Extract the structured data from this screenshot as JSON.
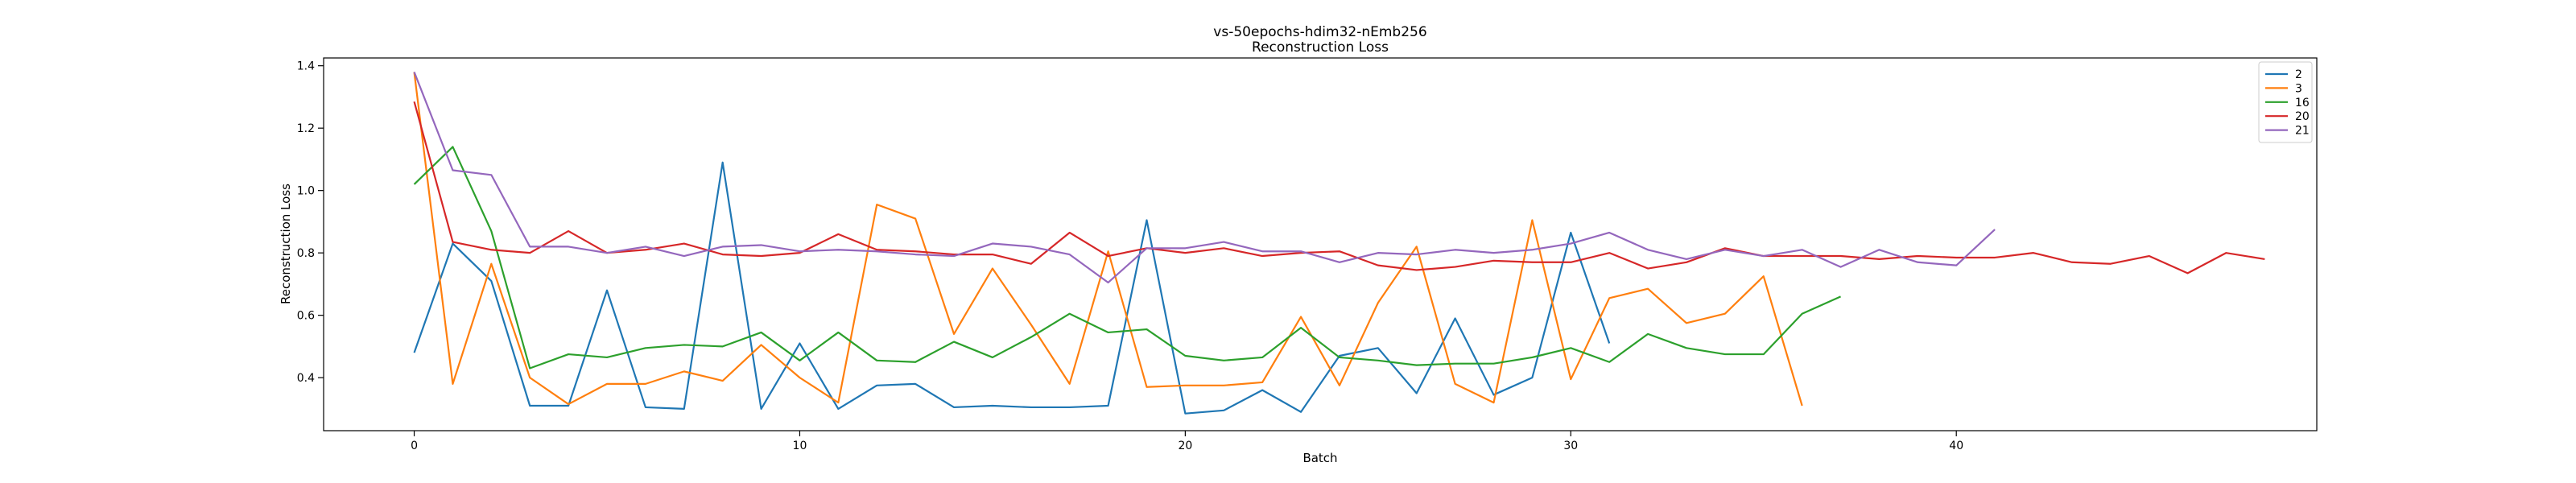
{
  "chart_data": {
    "type": "line",
    "title": "vs-50epochs-hdim32-nEmb256",
    "subtitle": "Reconstruction Loss",
    "xlabel": "Batch",
    "ylabel": "Reconstruction Loss",
    "xlim": [
      -2.35,
      49.35
    ],
    "ylim": [
      0.23,
      1.425
    ],
    "xticks": [
      0,
      10,
      20,
      30,
      40
    ],
    "yticks": [
      0.4,
      0.6,
      0.8,
      1.0,
      1.2,
      1.4
    ],
    "xtick_labels": [
      "0",
      "10",
      "20",
      "30",
      "40"
    ],
    "ytick_labels": [
      "0.4",
      "0.6",
      "0.8",
      "1.0",
      "1.2",
      "1.4"
    ],
    "grid": false,
    "legend_position": "top-right",
    "series": [
      {
        "name": "2",
        "color": "#1f77b4",
        "values": [
          0.48,
          0.83,
          0.71,
          0.31,
          0.31,
          0.68,
          0.305,
          0.3,
          1.09,
          0.3,
          0.51,
          0.3,
          0.375,
          0.38,
          0.305,
          0.31,
          0.305,
          0.305,
          0.31,
          0.905,
          0.285,
          0.295,
          0.36,
          0.29,
          0.47,
          0.495,
          0.35,
          0.59,
          0.345,
          0.4,
          0.865,
          0.51
        ]
      },
      {
        "name": "3",
        "color": "#ff7f0e",
        "values": [
          1.38,
          0.38,
          0.765,
          0.4,
          0.315,
          0.38,
          0.38,
          0.42,
          0.39,
          0.505,
          0.4,
          0.32,
          0.955,
          0.91,
          0.54,
          0.75,
          0.57,
          0.38,
          0.805,
          0.37,
          0.375,
          0.375,
          0.385,
          0.595,
          0.375,
          0.64,
          0.82,
          0.38,
          0.32,
          0.905,
          0.395,
          0.655,
          0.685,
          0.575,
          0.605,
          0.725,
          0.31
        ]
      },
      {
        "name": "16",
        "color": "#2ca02c",
        "values": [
          1.02,
          1.14,
          0.87,
          0.43,
          0.475,
          0.465,
          0.495,
          0.505,
          0.5,
          0.545,
          0.455,
          0.545,
          0.455,
          0.45,
          0.515,
          0.465,
          0.53,
          0.605,
          0.545,
          0.555,
          0.47,
          0.455,
          0.465,
          0.56,
          0.465,
          0.455,
          0.44,
          0.445,
          0.445,
          0.465,
          0.495,
          0.45,
          0.54,
          0.495,
          0.475,
          0.475,
          0.605,
          0.66
        ]
      },
      {
        "name": "20",
        "color": "#d62728",
        "values": [
          1.285,
          0.835,
          0.81,
          0.8,
          0.87,
          0.8,
          0.81,
          0.83,
          0.795,
          0.79,
          0.8,
          0.86,
          0.81,
          0.805,
          0.795,
          0.795,
          0.765,
          0.865,
          0.79,
          0.815,
          0.8,
          0.815,
          0.79,
          0.8,
          0.805,
          0.76,
          0.745,
          0.755,
          0.775,
          0.77,
          0.77,
          0.8,
          0.75,
          0.77,
          0.815,
          0.79,
          0.79,
          0.79,
          0.78,
          0.79,
          0.785,
          0.785,
          0.8,
          0.77,
          0.765,
          0.79,
          0.735,
          0.8,
          0.78
        ]
      },
      {
        "name": "21",
        "color": "#9467bd",
        "values": [
          1.38,
          1.065,
          1.05,
          0.82,
          0.82,
          0.8,
          0.82,
          0.79,
          0.82,
          0.825,
          0.805,
          0.81,
          0.805,
          0.795,
          0.79,
          0.83,
          0.82,
          0.795,
          0.705,
          0.815,
          0.815,
          0.835,
          0.805,
          0.805,
          0.77,
          0.8,
          0.795,
          0.81,
          0.8,
          0.81,
          0.83,
          0.865,
          0.81,
          0.78,
          0.81,
          0.79,
          0.81,
          0.755,
          0.81,
          0.77,
          0.76,
          0.875
        ]
      }
    ]
  }
}
